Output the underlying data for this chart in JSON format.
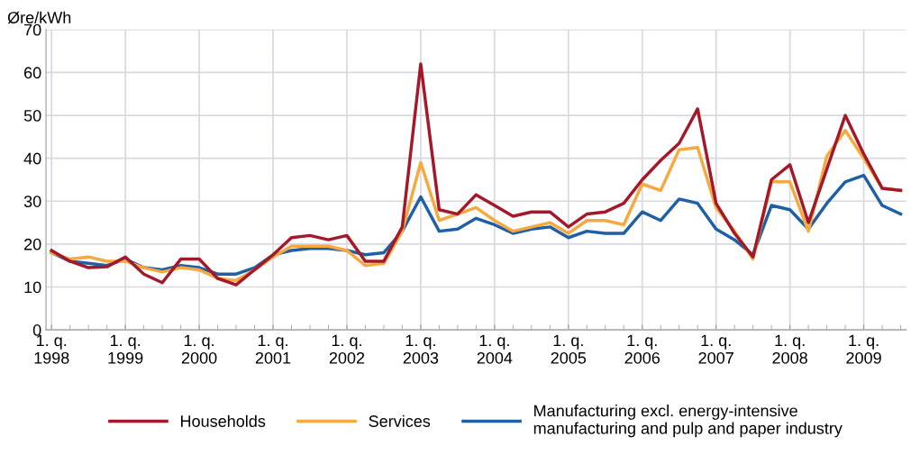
{
  "chart_data": {
    "type": "line",
    "ylabel": "Øre/kWh",
    "categories": [
      "1. q.\n1998",
      null,
      null,
      null,
      "1. q.\n1999",
      null,
      null,
      null,
      "1. q.\n2000",
      null,
      null,
      null,
      "1. q.\n2001",
      null,
      null,
      null,
      "1. q.\n2002",
      null,
      null,
      null,
      "1. q.\n2003",
      null,
      null,
      null,
      "1. q.\n2004",
      null,
      null,
      null,
      "1. q.\n2005",
      null,
      null,
      null,
      "1. q.\n2006",
      null,
      null,
      null,
      "1. q.\n2007",
      null,
      null,
      null,
      "1. q.\n2008",
      null,
      null,
      null,
      "1. q.\n2009",
      null,
      null
    ],
    "series": [
      {
        "name": "Households",
        "color": "#a3192a",
        "values": [
          18.5,
          16,
          14.5,
          14.7,
          17,
          13,
          11,
          16.5,
          16.5,
          12,
          10.5,
          14,
          17.5,
          21.5,
          22,
          21,
          22,
          16,
          16,
          24,
          62,
          28,
          27,
          31.5,
          29,
          26.5,
          27.5,
          27.5,
          24,
          27,
          27.5,
          29.5,
          35,
          39.5,
          43.5,
          51.5,
          29.5,
          22.5,
          17,
          35,
          38.5,
          25,
          37.5,
          50,
          41,
          33,
          32.5
        ]
      },
      {
        "name": "Services",
        "color": "#f5a93f",
        "values": [
          18,
          16.5,
          17,
          16,
          16,
          14.5,
          13.5,
          14.5,
          14,
          12,
          11.5,
          14,
          17,
          19.5,
          19.5,
          19.5,
          18.5,
          15,
          15.5,
          23,
          39,
          25.5,
          27,
          28.5,
          25.5,
          23,
          24,
          25,
          22.5,
          25.5,
          25.5,
          24.5,
          34,
          32.5,
          42,
          42.5,
          28.5,
          23,
          16.5,
          34.5,
          34.5,
          23,
          40.5,
          46.5,
          40,
          33,
          32.5
        ]
      },
      {
        "name": "Manufacturing excl. energy-intensive\nmanufacturing and pulp and paper industry",
        "color": "#1f5fa8",
        "values": [
          18,
          16,
          15.5,
          15,
          16.5,
          14.5,
          14,
          15,
          14.5,
          13,
          13,
          14.5,
          17.5,
          18.5,
          19,
          19,
          18.5,
          17.5,
          18,
          23,
          31,
          23,
          23.5,
          26,
          24.5,
          22.5,
          23.5,
          24,
          21.5,
          23,
          22.5,
          22.5,
          27.5,
          25.5,
          30.5,
          29.5,
          23.5,
          21,
          17.5,
          29,
          28,
          23.5,
          29.5,
          34.5,
          36,
          29,
          27
        ]
      }
    ],
    "ylim": [
      0,
      70
    ],
    "yticks": [
      0,
      10,
      20,
      30,
      40,
      50,
      60,
      70
    ],
    "grid": true,
    "legend": "bottom"
  }
}
